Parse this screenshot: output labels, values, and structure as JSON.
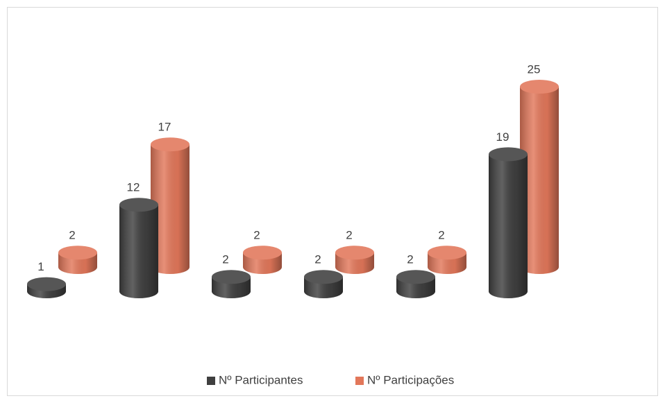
{
  "chart_data": {
    "type": "bar3d",
    "categories": [
      null,
      null,
      null,
      null,
      null,
      null
    ],
    "series": [
      {
        "name": "Nº Participantes",
        "color": "#3f3f3f",
        "values": [
          1,
          12,
          2,
          2,
          2,
          19
        ]
      },
      {
        "name": "Nº Participações",
        "color": "#e2775a",
        "values": [
          2,
          17,
          2,
          2,
          2,
          25
        ]
      }
    ],
    "legend": "bottom"
  }
}
